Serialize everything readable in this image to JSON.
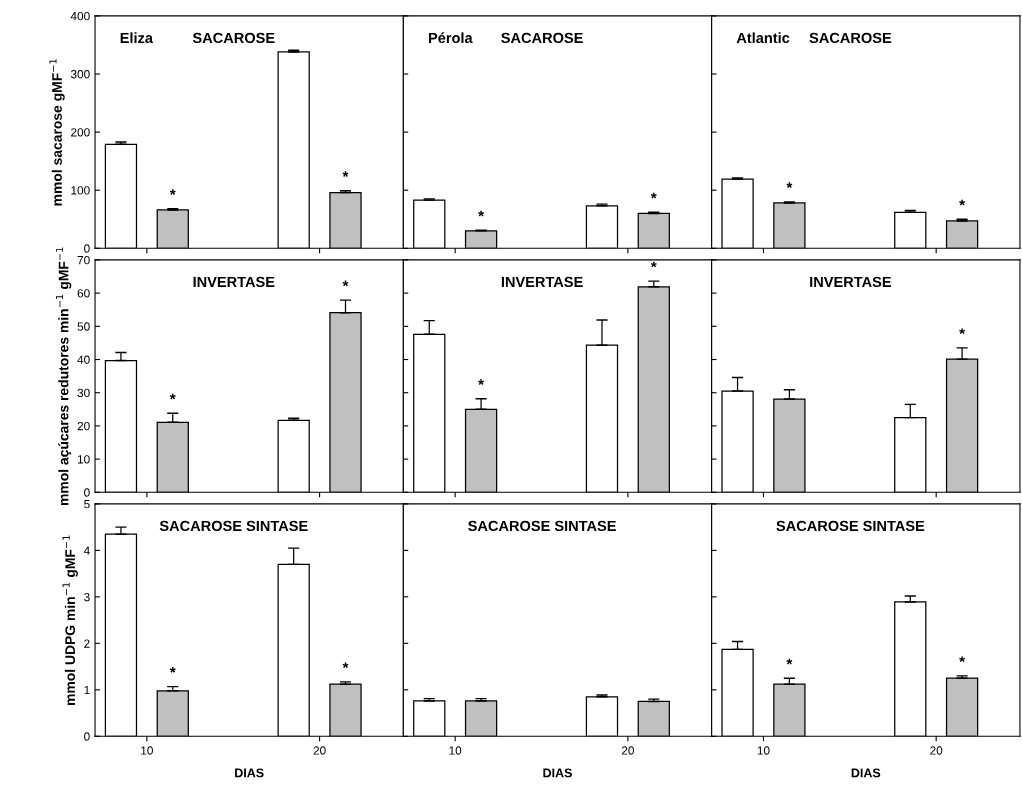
{
  "chart_data": [
    {
      "type": "bar",
      "title": "SACAROSE",
      "annotations": [
        "Eliza"
      ],
      "ylabel": "mmol sacarose gMF$^{−1}$",
      "categories": [
        "10",
        "20"
      ],
      "ylim": [
        0,
        400
      ],
      "yticks": [
        0,
        100,
        200,
        300,
        400
      ],
      "tick_labels": "y",
      "series": [
        {
          "color": "#ffffff",
          "values": [
            179,
            338
          ],
          "errors": [
            [
              179,
              183
            ],
            [
              338,
              341
            ]
          ]
        },
        {
          "color": "#c0c0c0",
          "values": [
            66,
            96
          ],
          "errors": [
            [
              66,
              68
            ],
            [
              96,
              99
            ]
          ],
          "value_labels": [
            "*",
            "*"
          ]
        }
      ]
    },
    {
      "type": "bar",
      "title": "SACAROSE",
      "annotations": [
        "Pérola"
      ],
      "categories": [
        "10",
        "20"
      ],
      "ylim": [
        0,
        400
      ],
      "yticks": [
        0,
        100,
        200,
        300,
        400
      ],
      "tick_labels": false,
      "series": [
        {
          "color": "#ffffff",
          "values": [
            83,
            73
          ],
          "errors": [
            [
              83,
              85
            ],
            [
              73,
              76
            ]
          ]
        },
        {
          "color": "#c0c0c0",
          "values": [
            30,
            60
          ],
          "errors": [
            [
              30,
              31
            ],
            [
              60,
              62
            ]
          ],
          "value_labels": [
            "*",
            "*"
          ]
        }
      ]
    },
    {
      "type": "bar",
      "title": "SACAROSE",
      "annotations": [
        "Atlantic"
      ],
      "categories": [
        "10",
        "20"
      ],
      "ylim": [
        0,
        400
      ],
      "yticks": [
        0,
        100,
        200,
        300,
        400
      ],
      "tick_labels": false,
      "series": [
        {
          "color": "#ffffff",
          "values": [
            119,
            62
          ],
          "errors": [
            [
              119,
              121
            ],
            [
              62,
              65
            ]
          ]
        },
        {
          "color": "#c0c0c0",
          "values": [
            78,
            47
          ],
          "errors": [
            [
              78,
              80
            ],
            [
              47,
              50
            ]
          ],
          "value_labels": [
            "*",
            "*"
          ]
        }
      ]
    },
    {
      "type": "bar",
      "title": "INVERTASE",
      "ylabel": "mmol açúcares redutores min$^{−1}$ gMF$^{−1}$",
      "categories": [
        "10",
        "20"
      ],
      "ylim": [
        0,
        70
      ],
      "yticks": [
        0,
        10,
        20,
        30,
        40,
        50,
        60,
        70
      ],
      "tick_labels": "y",
      "series": [
        {
          "color": "#ffffff",
          "values": [
            39.7,
            21.7
          ],
          "errors": [
            [
              39.7,
              42.1
            ],
            [
              21.7,
              22.3
            ]
          ]
        },
        {
          "color": "#c0c0c0",
          "values": [
            21.1,
            54.1
          ],
          "errors": [
            [
              21.1,
              23.8
            ],
            [
              54.1,
              57.9
            ]
          ],
          "value_labels": [
            "*",
            "*"
          ]
        }
      ]
    },
    {
      "type": "bar",
      "title": "INVERTASE",
      "categories": [
        "10",
        "20"
      ],
      "ylim": [
        0,
        70
      ],
      "yticks": [
        0,
        10,
        20,
        30,
        40,
        50,
        60,
        70
      ],
      "tick_labels": false,
      "series": [
        {
          "color": "#ffffff",
          "values": [
            47.6,
            44.3
          ],
          "errors": [
            [
              47.6,
              51.7
            ],
            [
              44.3,
              51.9
            ]
          ]
        },
        {
          "color": "#c0c0c0",
          "values": [
            25,
            61.9
          ],
          "errors": [
            [
              25,
              28.2
            ],
            [
              61.9,
              63.6
            ]
          ],
          "value_labels": [
            "*",
            "*"
          ]
        }
      ]
    },
    {
      "type": "bar",
      "title": "INVERTASE",
      "categories": [
        "10",
        "20"
      ],
      "ylim": [
        0,
        70
      ],
      "yticks": [
        0,
        10,
        20,
        30,
        40,
        50,
        60,
        70
      ],
      "tick_labels": false,
      "series": [
        {
          "color": "#ffffff",
          "values": [
            30.5,
            22.5
          ],
          "errors": [
            [
              30.5,
              34.6
            ],
            [
              22.5,
              26.5
            ]
          ]
        },
        {
          "color": "#c0c0c0",
          "values": [
            28.1,
            40.1
          ],
          "errors": [
            [
              28.1,
              30.9
            ],
            [
              40.1,
              43.5
            ]
          ],
          "value_labels": [
            null,
            "*"
          ]
        }
      ]
    },
    {
      "type": "bar",
      "title": "SACAROSE SINTASE",
      "ylabel": "mmol UDPG min$^{−1}$ gMF$^{−1}$",
      "xlabel": "DIAS",
      "categories": [
        "10",
        "20"
      ],
      "ylim": [
        0,
        5
      ],
      "yticks": [
        0,
        1,
        2,
        3,
        4,
        5
      ],
      "series": [
        {
          "color": "#ffffff",
          "values": [
            4.35,
            3.7
          ],
          "errors": [
            [
              4.35,
              4.5
            ],
            [
              3.7,
              4.05
            ]
          ]
        },
        {
          "color": "#c0c0c0",
          "values": [
            0.98,
            1.12
          ],
          "errors": [
            [
              0.98,
              1.07
            ],
            [
              1.12,
              1.17
            ]
          ],
          "value_labels": [
            "*",
            "*"
          ]
        }
      ]
    },
    {
      "type": "bar",
      "title": "SACAROSE SINTASE",
      "xlabel": "DIAS",
      "categories": [
        "10",
        "20"
      ],
      "ylim": [
        0,
        5
      ],
      "yticks": [
        0,
        1,
        2,
        3,
        4,
        5
      ],
      "tick_labels": "x",
      "series": [
        {
          "color": "#ffffff",
          "values": [
            0.76,
            0.85
          ],
          "errors": [
            [
              0.76,
              0.81
            ],
            [
              0.85,
              0.89
            ]
          ]
        },
        {
          "color": "#c0c0c0",
          "values": [
            0.76,
            0.75
          ],
          "errors": [
            [
              0.76,
              0.81
            ],
            [
              0.75,
              0.8
            ]
          ]
        }
      ]
    },
    {
      "type": "bar",
      "title": "SACAROSE SINTASE",
      "xlabel": "DIAS",
      "categories": [
        "10",
        "20"
      ],
      "ylim": [
        0,
        5
      ],
      "yticks": [
        0,
        1,
        2,
        3,
        4,
        5
      ],
      "tick_labels": "x",
      "series": [
        {
          "color": "#ffffff",
          "values": [
            1.87,
            2.89
          ],
          "errors": [
            [
              1.87,
              2.04
            ],
            [
              2.89,
              3.02
            ]
          ]
        },
        {
          "color": "#c0c0c0",
          "values": [
            1.12,
            1.25
          ],
          "errors": [
            [
              1.12,
              1.25
            ],
            [
              1.25,
              1.3
            ]
          ],
          "value_labels": [
            "*",
            "*"
          ]
        }
      ]
    }
  ]
}
